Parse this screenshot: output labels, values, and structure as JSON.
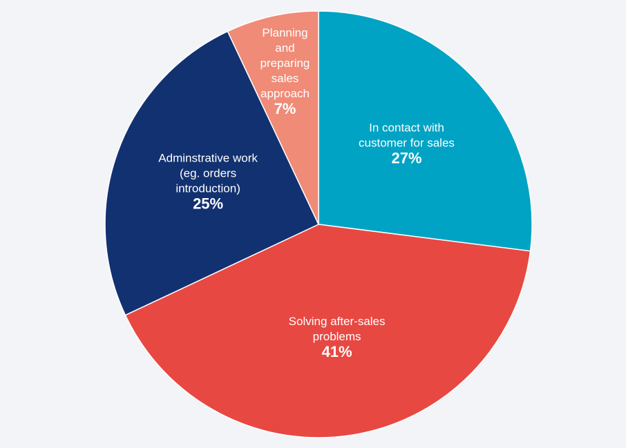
{
  "chart_data": {
    "type": "pie",
    "categories": [
      "In contact with customer for sales",
      "Solving after-sales problems",
      "Adminstrative work (eg. orders introduction)",
      "Planning and preparing sales approach"
    ],
    "values": [
      27,
      41,
      25,
      7
    ],
    "value_labels": [
      "27%",
      "41%",
      "25%",
      "7%"
    ],
    "colors": [
      "#01a3c4",
      "#e84842",
      "#123170",
      "#ef8b77"
    ]
  }
}
